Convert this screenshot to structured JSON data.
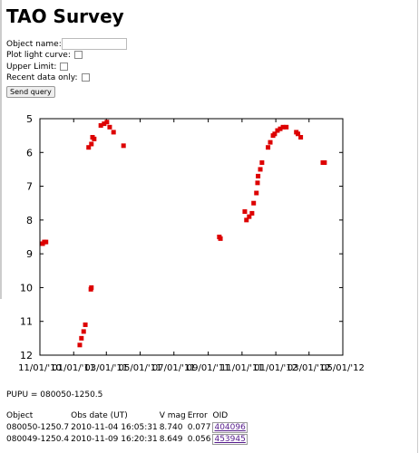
{
  "header": {
    "title": "TAO Survey"
  },
  "form": {
    "fields": [
      "Object name:",
      "Plot light curve:",
      "Upper Limit:",
      "Recent data only:"
    ],
    "button": "Send query"
  },
  "chart_data": {
    "type": "scatter",
    "color": "#dd0000",
    "x": [
      5,
      8,
      11,
      72,
      75,
      79,
      82,
      92,
      93,
      88,
      93,
      95,
      98,
      110,
      116,
      121,
      126,
      133,
      151,
      324,
      326,
      370,
      373,
      378,
      383,
      386,
      391,
      393,
      394,
      398,
      401,
      412,
      416,
      421,
      424,
      429,
      434,
      439,
      445,
      463,
      466,
      471,
      511,
      514
    ],
    "values": [
      8.7,
      8.65,
      8.65,
      11.7,
      11.5,
      11.3,
      11.1,
      10.05,
      10.0,
      5.85,
      5.75,
      5.55,
      5.6,
      5.2,
      5.15,
      5.1,
      5.25,
      5.4,
      5.8,
      8.5,
      8.55,
      7.75,
      8.0,
      7.9,
      7.8,
      7.5,
      7.2,
      6.9,
      6.7,
      6.5,
      6.3,
      5.85,
      5.7,
      5.5,
      5.45,
      5.35,
      5.3,
      5.25,
      5.25,
      5.4,
      5.45,
      5.55,
      6.3,
      6.3
    ],
    "xlim": [
      0,
      547
    ],
    "xticks": [
      {
        "value": 0,
        "label": "11/01/'10"
      },
      {
        "value": 61,
        "label": "01/01/'11"
      },
      {
        "value": 120,
        "label": "03/01/'11"
      },
      {
        "value": 181,
        "label": "05/01/'11"
      },
      {
        "value": 242,
        "label": "07/01/'11"
      },
      {
        "value": 304,
        "label": "09/01/'11"
      },
      {
        "value": 365,
        "label": "11/01/'11"
      },
      {
        "value": 426,
        "label": "01/01/'12"
      },
      {
        "value": 486,
        "label": "03/01/'12"
      },
      {
        "value": 547,
        "label": "05/01/'12"
      }
    ],
    "ylim": [
      12,
      5
    ],
    "yticks": [
      5,
      6,
      7,
      8,
      9,
      10,
      11,
      12
    ]
  },
  "info": "PUPU = 080050-1250.5",
  "table": {
    "header": [
      "Object",
      "Obs date (UT)",
      "V mag",
      "Error",
      "OID"
    ],
    "rows": [
      [
        "080050-1250.7",
        "2010-11-04 16:05:31",
        "8.740",
        "0.077",
        "404096"
      ],
      [
        "080049-1250.4",
        "2010-11-09 16:20:31",
        "8.649",
        "0.056",
        "453945"
      ]
    ]
  }
}
